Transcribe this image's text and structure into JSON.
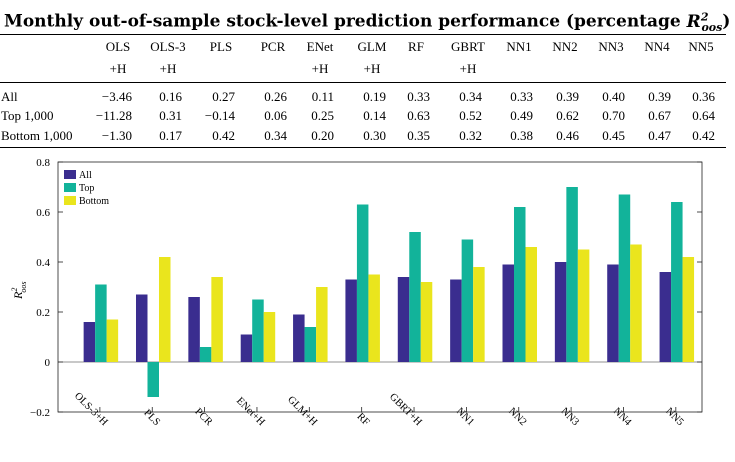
{
  "title": {
    "prefix": "Monthly out-of-sample stock-level prediction performance (percentage ",
    "symbol_base": "R",
    "symbol_sup": "2",
    "symbol_sub": "oos",
    "suffix": ")"
  },
  "table": {
    "columns": [
      {
        "line1": "OLS",
        "line2": "+H"
      },
      {
        "line1": "OLS-3",
        "line2": "+H"
      },
      {
        "line1": "PLS",
        "line2": ""
      },
      {
        "line1": "PCR",
        "line2": ""
      },
      {
        "line1": "ENet",
        "line2": "+H"
      },
      {
        "line1": "GLM",
        "line2": "+H"
      },
      {
        "line1": "RF",
        "line2": ""
      },
      {
        "line1": "GBRT",
        "line2": "+H"
      },
      {
        "line1": "NN1",
        "line2": ""
      },
      {
        "line1": "NN2",
        "line2": ""
      },
      {
        "line1": "NN3",
        "line2": ""
      },
      {
        "line1": "NN4",
        "line2": ""
      },
      {
        "line1": "NN5",
        "line2": ""
      }
    ],
    "rows": [
      {
        "label": "All",
        "values": [
          "−3.46",
          "0.16",
          "0.27",
          "0.26",
          "0.11",
          "0.19",
          "0.33",
          "0.34",
          "0.33",
          "0.39",
          "0.40",
          "0.39",
          "0.36"
        ]
      },
      {
        "label": "Top 1,000",
        "values": [
          "−11.28",
          "0.31",
          "−0.14",
          "0.06",
          "0.25",
          "0.14",
          "0.63",
          "0.52",
          "0.49",
          "0.62",
          "0.70",
          "0.67",
          "0.64"
        ]
      },
      {
        "label": "Bottom 1,000",
        "values": [
          "−1.30",
          "0.17",
          "0.42",
          "0.34",
          "0.20",
          "0.30",
          "0.35",
          "0.32",
          "0.38",
          "0.46",
          "0.45",
          "0.47",
          "0.42"
        ]
      }
    ]
  },
  "chart_data": {
    "type": "bar",
    "categories": [
      "OLS-3+H",
      "PLS",
      "PCR",
      "ENet+H",
      "GLM+H",
      "RF",
      "GBRT+H",
      "NN1",
      "NN2",
      "NN3",
      "NN4",
      "NN5"
    ],
    "series": [
      {
        "name": "All",
        "color": "#3a2d8f",
        "values": [
          0.16,
          0.27,
          0.26,
          0.11,
          0.19,
          0.33,
          0.34,
          0.33,
          0.39,
          0.4,
          0.39,
          0.36
        ]
      },
      {
        "name": "Top",
        "color": "#12b39a",
        "values": [
          0.31,
          -0.14,
          0.06,
          0.25,
          0.14,
          0.63,
          0.52,
          0.49,
          0.62,
          0.7,
          0.67,
          0.64
        ]
      },
      {
        "name": "Bottom",
        "color": "#eae51d",
        "values": [
          0.17,
          0.42,
          0.34,
          0.2,
          0.3,
          0.35,
          0.32,
          0.38,
          0.46,
          0.45,
          0.47,
          0.42
        ]
      }
    ],
    "ylabel_base": "R",
    "ylabel_sup": "2",
    "ylabel_sub": "oos",
    "ylim": [
      -0.2,
      0.8
    ],
    "yticks": [
      -0.2,
      0,
      0.2,
      0.4,
      0.6,
      0.8
    ],
    "ytick_labels": [
      "−0.2",
      "0",
      "0.2",
      "0.4",
      "0.6",
      "0.8"
    ],
    "legend_position": "top-left",
    "grid": false
  }
}
